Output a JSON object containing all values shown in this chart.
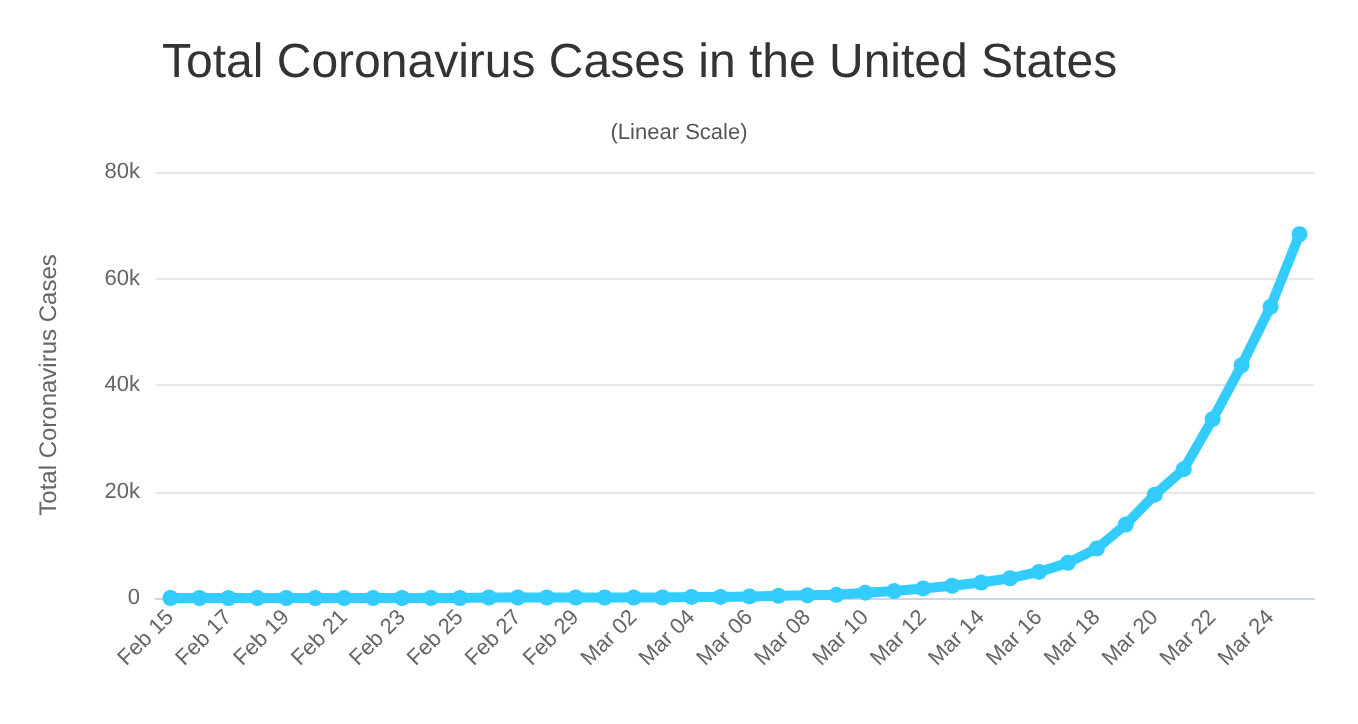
{
  "chart_data": {
    "type": "line",
    "title": "Total Coronavirus Cases in the United States",
    "subtitle": "(Linear Scale)",
    "ylabel": "Total Coronavirus Cases",
    "categories": [
      "Feb 15",
      null,
      "Feb 17",
      null,
      "Feb 19",
      null,
      "Feb 21",
      null,
      "Feb 23",
      null,
      "Feb 25",
      null,
      "Feb 27",
      null,
      "Feb 29",
      null,
      "Mar 02",
      null,
      "Mar 04",
      null,
      "Mar 06",
      null,
      "Mar 08",
      null,
      "Mar 10",
      null,
      "Mar 12",
      null,
      "Mar 14",
      null,
      "Mar 16",
      null,
      "Mar 18",
      null,
      "Mar 20",
      null,
      "Mar 22",
      null,
      "Mar 24",
      null
    ],
    "series": [
      {
        "color": "#33ccff",
        "values": [
          0,
          0,
          0,
          0,
          0,
          0,
          0,
          0,
          0,
          0,
          0,
          100,
          100,
          100,
          100,
          100,
          100,
          100,
          200,
          200,
          300,
          400,
          500,
          600,
          1000,
          1300,
          1800,
          2300,
          2900,
          3700,
          4900,
          6600,
          9300,
          13800,
          19400,
          24200,
          33600,
          43700,
          54700,
          68300
        ]
      }
    ],
    "ylim": [
      0,
      80000
    ],
    "yticks": [
      {
        "value": 0,
        "label": "0"
      },
      {
        "value": 20000,
        "label": "20k"
      },
      {
        "value": 40000,
        "label": "40k"
      },
      {
        "value": 60000,
        "label": "60k"
      },
      {
        "value": 80000,
        "label": "80k"
      }
    ],
    "grid": "y",
    "marker": "circle",
    "line_style": "solid"
  }
}
